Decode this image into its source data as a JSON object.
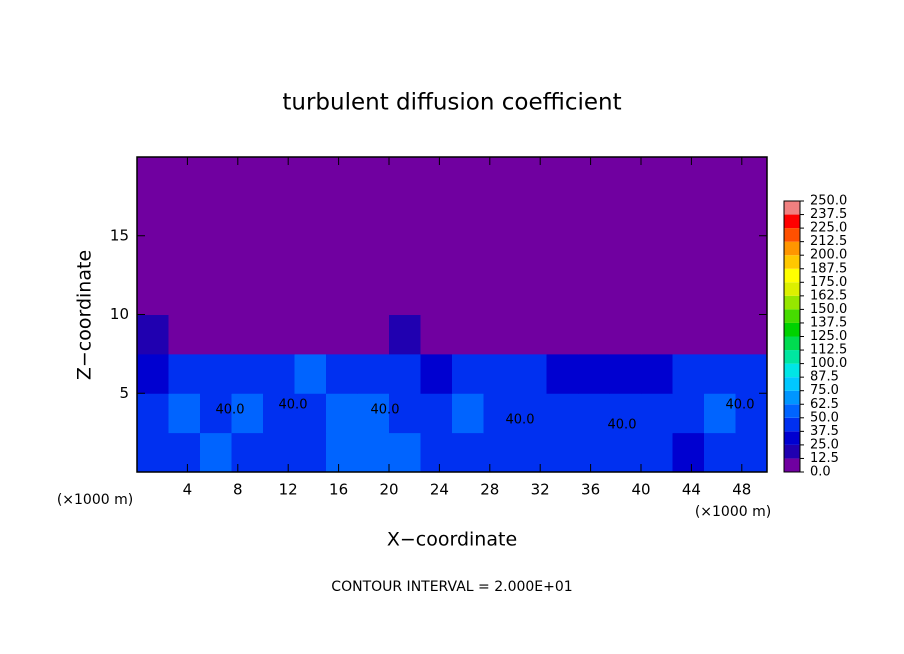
{
  "chart_data": {
    "type": "contour",
    "title": "turbulent diffusion coefficient",
    "xlabel": "X−coordinate",
    "ylabel": "Z−coordinate",
    "x_unit": "(×1000 m)",
    "x_unit_right": "(×1000 m)",
    "footnote": "CONTOUR INTERVAL = 2.000E+01",
    "contour_labels": [
      "40.0",
      "40.0",
      "40.0",
      "40.0",
      "40.0",
      "40.0"
    ],
    "xlim": [
      0,
      50
    ],
    "xticks": [
      4,
      8,
      12,
      16,
      20,
      24,
      28,
      32,
      36,
      40,
      44,
      48
    ],
    "ylim": [
      0,
      20
    ],
    "yticks": [
      5,
      10,
      15
    ],
    "field": {
      "x_edges": [
        0,
        2.5,
        5,
        7.5,
        10,
        12.5,
        15,
        17.5,
        20,
        22.5,
        25,
        27.5,
        30,
        32.5,
        35,
        37.5,
        40,
        42.5,
        45,
        47.5,
        50
      ],
      "z_edges": [
        0,
        2.5,
        5,
        7.5,
        10,
        12.5,
        15,
        17.5,
        20
      ],
      "values": [
        [
          40,
          45,
          55,
          45,
          40,
          45,
          50,
          55,
          60,
          45,
          40,
          40,
          45,
          45,
          40,
          40,
          40,
          35,
          40,
          40
        ],
        [
          40,
          50,
          40,
          50,
          45,
          40,
          55,
          50,
          45,
          45,
          50,
          40,
          45,
          45,
          45,
          45,
          45,
          40,
          50,
          45
        ],
        [
          35,
          40,
          45,
          40,
          40,
          50,
          45,
          45,
          40,
          35,
          40,
          45,
          40,
          35,
          25,
          30,
          30,
          40,
          40,
          40
        ],
        [
          12.5,
          0,
          0,
          0,
          0,
          0,
          0,
          0,
          12.5,
          0,
          0,
          0,
          0,
          0,
          0,
          0,
          0,
          0,
          0,
          0
        ],
        [
          0,
          0,
          0,
          0,
          0,
          0,
          0,
          0,
          0,
          0,
          0,
          0,
          0,
          0,
          0,
          0,
          0,
          0,
          0,
          0
        ],
        [
          0,
          0,
          0,
          0,
          0,
          0,
          0,
          0,
          0,
          0,
          0,
          0,
          0,
          0,
          0,
          0,
          0,
          0,
          0,
          0
        ],
        [
          0,
          0,
          0,
          0,
          0,
          0,
          0,
          0,
          0,
          0,
          0,
          0,
          0,
          0,
          0,
          0,
          0,
          0,
          0,
          0
        ],
        [
          0,
          0,
          0,
          0,
          0,
          0,
          0,
          0,
          0,
          0,
          0,
          0,
          0,
          0,
          0,
          0,
          0,
          0,
          0,
          0
        ]
      ]
    },
    "colorbar": {
      "ticks": [
        {
          "value": 0,
          "label": "0.0"
        },
        {
          "value": 12.5,
          "label": "12.5"
        },
        {
          "value": 25,
          "label": "25.0"
        },
        {
          "value": 37.5,
          "label": "37.5"
        },
        {
          "value": 50,
          "label": "50.0"
        },
        {
          "value": 62.5,
          "label": "62.5"
        },
        {
          "value": 75,
          "label": "75.0"
        },
        {
          "value": 87.5,
          "label": "87.5"
        },
        {
          "value": 100,
          "label": "100.0"
        },
        {
          "value": 112.5,
          "label": "112.5"
        },
        {
          "value": 125,
          "label": "125.0"
        },
        {
          "value": 137.5,
          "label": "137.5"
        },
        {
          "value": 150,
          "label": "150.0"
        },
        {
          "value": 162.5,
          "label": "162.5"
        },
        {
          "value": 175,
          "label": "175.0"
        },
        {
          "value": 187.5,
          "label": "187.5"
        },
        {
          "value": 200,
          "label": "200.0"
        },
        {
          "value": 212.5,
          "label": "212.5"
        },
        {
          "value": 225,
          "label": "225.0"
        },
        {
          "value": 237.5,
          "label": "237.5"
        },
        {
          "value": 250,
          "label": "250.0"
        }
      ],
      "colors": [
        "#7000a0",
        "#2000b0",
        "#0000d0",
        "#0030f0",
        "#0064ff",
        "#0096ff",
        "#00c8ff",
        "#00e6e6",
        "#00e6a0",
        "#00dc50",
        "#00d200",
        "#46dc00",
        "#96e600",
        "#dcf000",
        "#ffff00",
        "#ffc800",
        "#ff9600",
        "#ff5000",
        "#ff0000",
        "#f08080"
      ]
    }
  }
}
